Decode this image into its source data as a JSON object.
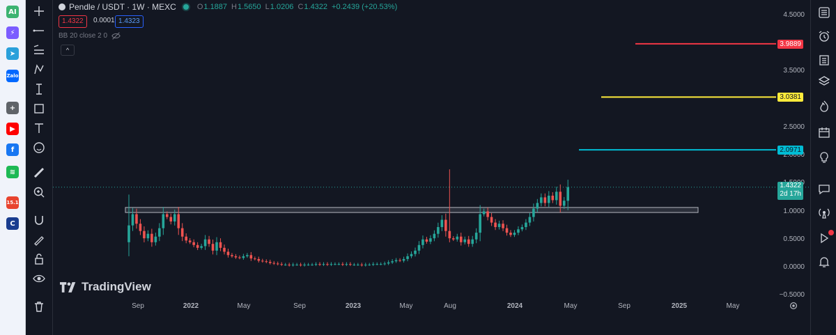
{
  "appbar": {
    "items": [
      {
        "name": "ai-app-icon",
        "text": "AI",
        "color": "#3cb371"
      },
      {
        "name": "messenger-icon",
        "text": "⚡",
        "color": "#7b5cff"
      },
      {
        "name": "telegram-icon",
        "text": "➤",
        "color": "#2aa0da"
      },
      {
        "name": "zalo-icon",
        "text": "Zalo",
        "color": "#0068ff"
      },
      {
        "name": "add-app-icon",
        "text": "+",
        "color": "#5f6368"
      },
      {
        "name": "youtube-icon",
        "text": "▶",
        "color": "#ff0000"
      },
      {
        "name": "facebook-icon",
        "text": "f",
        "color": "#1877f2"
      },
      {
        "name": "spotify-icon",
        "text": "≋",
        "color": "#1db954"
      },
      {
        "name": "calendar-app-icon",
        "text": "15.1",
        "color": "#e8432e"
      },
      {
        "name": "coccoc-app-icon",
        "text": "C",
        "color": "#1a3d8f"
      }
    ]
  },
  "legend": {
    "symbol": "Pendle / USDT · 1W · MEXC",
    "open_label": "O",
    "open": "1.1887",
    "high_label": "H",
    "high": "1.5650",
    "low_label": "L",
    "low": "1.0206",
    "close_label": "C",
    "close": "1.4322",
    "change": "+0.2439 (+20.53%)",
    "bid": "1.4322",
    "spread": "0.0001",
    "ask": "1.4323",
    "indicator": "BB 20 close 2 0",
    "collapse": "^"
  },
  "colors": {
    "up": "#26a69a",
    "down": "#ef5350",
    "level_red": "#f23645",
    "level_yellow": "#ffeb3b",
    "level_cyan": "#00bcd4",
    "accent": "#2962ff"
  },
  "price_axis": {
    "ticks": [
      "4.5000",
      "3.5000",
      "2.5000",
      "2.0000",
      "1.5000",
      "1.0000",
      "0.5000",
      "0.0000",
      "−0.5000"
    ],
    "tick_values": [
      4.5,
      3.5,
      2.5,
      2.0,
      1.5,
      1.0,
      0.5,
      0.0,
      -0.5
    ],
    "levels": [
      {
        "label": "3.9889",
        "value": 3.9889,
        "color": "#f23645",
        "text_color": "#ffffff"
      },
      {
        "label": "3.0381",
        "value": 3.0381,
        "color": "#ffeb3b",
        "text_color": "#131722"
      },
      {
        "label": "2.0971",
        "value": 2.0971,
        "color": "#00bcd4",
        "text_color": "#131722"
      }
    ],
    "last_price": "1.4322",
    "countdown": "2d 17h"
  },
  "time_axis": {
    "labels": [
      "Sep",
      "2022",
      "May",
      "Sep",
      "2023",
      "May",
      "Aug",
      "2024",
      "May",
      "Sep",
      "2025",
      "May"
    ]
  },
  "chart_data": {
    "type": "candlestick",
    "symbol": "Pendle / USDT",
    "interval": "1W",
    "exchange": "MEXC",
    "ylim": [
      -0.5,
      4.5
    ],
    "support_zone": [
      0.98,
      1.07
    ],
    "last": {
      "open": 1.1887,
      "high": 1.565,
      "low": 1.0206,
      "close": 1.4322
    },
    "closes": [
      0.75,
      0.95,
      0.78,
      0.65,
      0.52,
      0.6,
      0.45,
      0.55,
      0.7,
      0.95,
      0.9,
      0.82,
      0.95,
      0.7,
      0.55,
      0.48,
      0.45,
      0.4,
      0.35,
      0.38,
      0.5,
      0.42,
      0.3,
      0.45,
      0.35,
      0.28,
      0.22,
      0.2,
      0.18,
      0.17,
      0.2,
      0.22,
      0.16,
      0.15,
      0.12,
      0.11,
      0.1,
      0.08,
      0.07,
      0.06,
      0.05,
      0.05,
      0.04,
      0.05,
      0.05,
      0.04,
      0.05,
      0.05,
      0.05,
      0.06,
      0.05,
      0.06,
      0.05,
      0.06,
      0.06,
      0.06,
      0.05,
      0.06,
      0.05,
      0.05,
      0.05,
      0.04,
      0.05,
      0.05,
      0.06,
      0.06,
      0.06,
      0.07,
      0.09,
      0.11,
      0.13,
      0.12,
      0.15,
      0.2,
      0.24,
      0.3,
      0.4,
      0.5,
      0.46,
      0.52,
      0.6,
      0.72,
      0.85,
      0.65,
      0.52,
      0.5,
      0.55,
      0.45,
      0.5,
      0.42,
      0.5,
      0.62,
      0.95,
      1.0,
      0.9,
      0.8,
      0.72,
      0.78,
      0.7,
      0.62,
      0.58,
      0.62,
      0.68,
      0.72,
      0.8,
      0.9,
      1.05,
      1.15,
      1.25,
      1.15,
      1.28,
      1.2,
      1.35,
      1.1,
      1.19,
      1.4322
    ]
  },
  "toolbar_right": {
    "notification_dot": "#f23645"
  }
}
